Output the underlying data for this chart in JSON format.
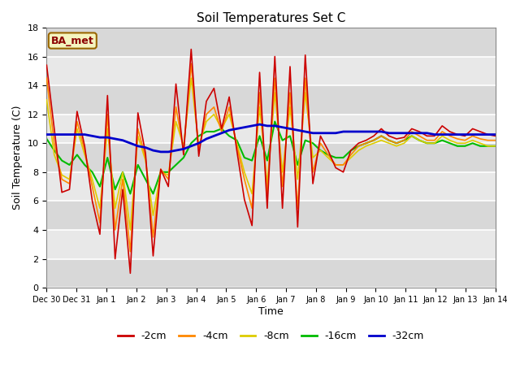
{
  "title": "Soil Temperatures Set C",
  "xlabel": "Time",
  "ylabel": "Soil Temperature (C)",
  "annotation": "BA_met",
  "ylim": [
    0,
    18
  ],
  "fig_facecolor": "#ffffff",
  "plot_bg_color": "#e8e8e8",
  "grid_color": "#cccccc",
  "line_colors": {
    "-2cm": "#cc0000",
    "-4cm": "#ff8800",
    "-8cm": "#ddcc00",
    "-16cm": "#00bb00",
    "-32cm": "#0000cc"
  },
  "xtick_labels": [
    "Dec 30",
    "Dec 31",
    "Jan 1",
    "Jan 2",
    "Jan 3",
    "Jan 4",
    "Jan 5",
    "Jan 6",
    "Jan 7",
    "Jan 8",
    "Jan 9",
    "Jan 10",
    "Jan 11",
    "Jan 12",
    "Jan 13",
    "Jan 14"
  ],
  "num_days": 15,
  "samples_per_day": 4,
  "data_2cm": [
    15.4,
    11.0,
    6.6,
    6.8,
    12.2,
    9.8,
    6.0,
    3.7,
    13.3,
    2.0,
    6.8,
    1.0,
    12.1,
    9.3,
    2.2,
    8.2,
    7.0,
    14.1,
    9.2,
    16.5,
    9.1,
    12.9,
    13.8,
    11.0,
    13.2,
    9.5,
    6.1,
    4.3,
    14.9,
    5.5,
    16.0,
    5.5,
    15.3,
    4.2,
    16.1,
    7.2,
    10.5,
    9.5,
    8.3,
    8.0,
    9.5,
    10.0,
    10.2,
    10.5,
    11.0,
    10.5,
    10.3,
    10.4,
    11.0,
    10.8,
    10.5,
    10.5,
    11.2,
    10.8,
    10.6,
    10.5,
    11.0,
    10.8,
    10.6,
    10.5
  ],
  "data_4cm": [
    14.5,
    10.0,
    7.5,
    7.2,
    11.5,
    9.5,
    7.0,
    4.5,
    12.0,
    4.0,
    7.5,
    2.5,
    11.0,
    9.0,
    3.5,
    8.2,
    7.5,
    12.5,
    9.5,
    15.5,
    9.5,
    12.0,
    12.5,
    10.8,
    12.5,
    9.8,
    7.5,
    5.5,
    13.5,
    6.5,
    14.5,
    7.0,
    13.5,
    5.5,
    14.5,
    8.0,
    10.0,
    9.2,
    8.5,
    8.5,
    9.2,
    9.8,
    10.0,
    10.2,
    10.5,
    10.2,
    10.0,
    10.2,
    10.8,
    10.5,
    10.2,
    10.2,
    10.8,
    10.5,
    10.3,
    10.2,
    10.5,
    10.3,
    10.2,
    10.2
  ],
  "data_8cm": [
    13.0,
    9.2,
    7.8,
    7.5,
    11.0,
    9.2,
    7.5,
    5.5,
    11.0,
    5.5,
    8.0,
    4.0,
    10.5,
    8.8,
    5.0,
    8.0,
    7.8,
    11.5,
    9.8,
    14.5,
    9.8,
    11.5,
    12.0,
    11.0,
    12.0,
    10.0,
    8.0,
    6.5,
    12.5,
    7.2,
    13.5,
    8.0,
    12.5,
    7.5,
    13.5,
    9.0,
    9.5,
    9.0,
    8.5,
    8.5,
    9.0,
    9.5,
    9.8,
    10.0,
    10.2,
    10.0,
    9.8,
    10.0,
    10.5,
    10.2,
    10.0,
    10.0,
    10.5,
    10.2,
    10.0,
    10.0,
    10.2,
    10.0,
    9.8,
    9.8
  ],
  "data_16cm": [
    10.3,
    9.5,
    8.8,
    8.5,
    9.2,
    8.5,
    8.0,
    7.0,
    9.0,
    6.8,
    8.0,
    6.5,
    8.5,
    7.5,
    6.5,
    8.0,
    8.0,
    8.5,
    9.0,
    10.0,
    10.5,
    10.8,
    10.8,
    11.0,
    10.5,
    10.2,
    9.0,
    8.8,
    10.5,
    8.8,
    11.5,
    10.2,
    10.5,
    8.5,
    10.2,
    10.0,
    9.5,
    9.2,
    9.0,
    9.0,
    9.5,
    9.8,
    10.0,
    10.2,
    10.5,
    10.2,
    10.0,
    10.2,
    10.5,
    10.2,
    10.0,
    10.0,
    10.2,
    10.0,
    9.8,
    9.8,
    10.0,
    9.8,
    9.8,
    9.8
  ],
  "data_32cm": [
    10.6,
    10.6,
    10.6,
    10.6,
    10.6,
    10.6,
    10.5,
    10.4,
    10.4,
    10.3,
    10.2,
    10.0,
    9.8,
    9.7,
    9.5,
    9.4,
    9.4,
    9.5,
    9.6,
    9.8,
    10.0,
    10.3,
    10.5,
    10.7,
    10.9,
    11.0,
    11.1,
    11.2,
    11.3,
    11.2,
    11.2,
    11.1,
    11.0,
    10.9,
    10.8,
    10.7,
    10.7,
    10.7,
    10.7,
    10.8,
    10.8,
    10.8,
    10.8,
    10.8,
    10.8,
    10.7,
    10.7,
    10.7,
    10.7,
    10.7,
    10.7,
    10.6,
    10.6,
    10.6,
    10.6,
    10.6,
    10.6,
    10.6,
    10.6,
    10.6
  ]
}
